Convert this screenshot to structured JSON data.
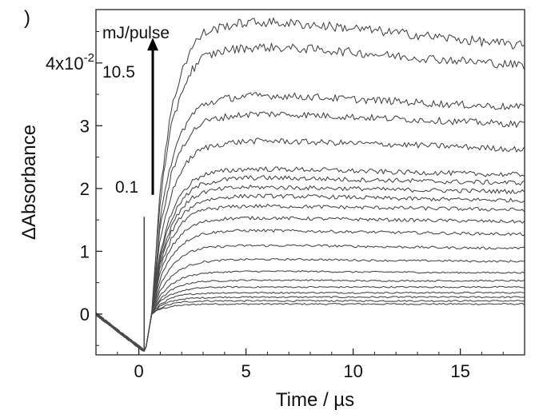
{
  "chart_data": {
    "type": "line",
    "panel_label": ")",
    "xlabel": "Time / µs",
    "ylabel": "ΔAbsorbance",
    "xlim": [
      -2,
      18
    ],
    "ylim": [
      -0.0065,
      0.0485
    ],
    "grid": false,
    "legend": "none",
    "x_ticks": [
      {
        "value": 0,
        "label": "0"
      },
      {
        "value": 5,
        "label": "5"
      },
      {
        "value": 10,
        "label": "10"
      },
      {
        "value": 15,
        "label": "15"
      }
    ],
    "y_ticks": [
      {
        "value": 0.0,
        "label": "0"
      },
      {
        "value": 0.01,
        "label": "1"
      },
      {
        "value": 0.02,
        "label": "2"
      },
      {
        "value": 0.03,
        "label": "3"
      },
      {
        "value": 0.04,
        "label": "4x10",
        "exponent": "-2"
      }
    ],
    "annotations": {
      "unit": "mJ/pulse",
      "high_energy": "10.5",
      "low_energy": "0.1",
      "arrow_from_y": 0.019,
      "arrow_to_y": 0.0435,
      "arrow_x": 0.65
    },
    "line_color": "#4a4a4a",
    "laser_spike": {
      "x": 0.25,
      "y_max": 0.0155,
      "y_min": -0.006
    },
    "series_note_x": [
      -2,
      0.3,
      0.6,
      1,
      1.5,
      2,
      2.5,
      3,
      4,
      5,
      6,
      8,
      10,
      12,
      14,
      16,
      18
    ],
    "series": [
      {
        "values": [
          0,
          -0.006,
          0,
          0.0008,
          0.0012,
          0.0014,
          0.0015,
          0.0016,
          0.0016,
          0.0016,
          0.0016,
          0.0016,
          0.0016,
          0.0016,
          0.0016,
          0.0016,
          0.0016
        ]
      },
      {
        "values": [
          0,
          -0.006,
          0,
          0.001,
          0.0016,
          0.0019,
          0.002,
          0.0021,
          0.0021,
          0.0021,
          0.0021,
          0.0021,
          0.0021,
          0.0021,
          0.0021,
          0.0021,
          0.0021
        ]
      },
      {
        "values": [
          0,
          -0.006,
          0,
          0.0013,
          0.002,
          0.0024,
          0.0025,
          0.0026,
          0.0027,
          0.0027,
          0.0027,
          0.0027,
          0.0027,
          0.0027,
          0.0027,
          0.0027,
          0.0027
        ]
      },
      {
        "values": [
          0,
          -0.006,
          0,
          0.0016,
          0.0025,
          0.003,
          0.0032,
          0.0033,
          0.0034,
          0.0034,
          0.0034,
          0.0034,
          0.0034,
          0.0034,
          0.0034,
          0.0034,
          0.0034
        ]
      },
      {
        "values": [
          0,
          -0.006,
          0,
          0.002,
          0.0031,
          0.0037,
          0.004,
          0.0042,
          0.0043,
          0.0043,
          0.0043,
          0.0043,
          0.0043,
          0.0043,
          0.0043,
          0.0043,
          0.0043
        ]
      },
      {
        "values": [
          0,
          -0.006,
          0,
          0.0024,
          0.0038,
          0.0046,
          0.005,
          0.0052,
          0.0053,
          0.0054,
          0.0054,
          0.0054,
          0.0053,
          0.0053,
          0.0053,
          0.0053,
          0.0053
        ]
      },
      {
        "values": [
          0,
          -0.006,
          0,
          0.003,
          0.0047,
          0.0057,
          0.0062,
          0.0065,
          0.0067,
          0.0068,
          0.0068,
          0.0068,
          0.0067,
          0.0067,
          0.0066,
          0.0066,
          0.0066
        ]
      },
      {
        "values": [
          0,
          -0.006,
          0,
          0.0038,
          0.006,
          0.0072,
          0.0079,
          0.0083,
          0.0086,
          0.0087,
          0.0087,
          0.0087,
          0.0086,
          0.0085,
          0.0085,
          0.0084,
          0.0084
        ]
      },
      {
        "values": [
          0,
          -0.006,
          0,
          0.0048,
          0.0076,
          0.0092,
          0.01,
          0.0105,
          0.0108,
          0.0109,
          0.0109,
          0.0109,
          0.0108,
          0.0107,
          0.0106,
          0.0105,
          0.0105
        ]
      },
      {
        "values": [
          0,
          -0.006,
          0,
          0.0058,
          0.0092,
          0.0111,
          0.0122,
          0.0128,
          0.0132,
          0.0133,
          0.0133,
          0.0132,
          0.0131,
          0.013,
          0.0129,
          0.0128,
          0.0127
        ]
      },
      {
        "values": [
          0,
          -0.006,
          0,
          0.0067,
          0.0106,
          0.0128,
          0.014,
          0.0147,
          0.0152,
          0.0153,
          0.0153,
          0.0152,
          0.0151,
          0.015,
          0.0149,
          0.0148,
          0.0147
        ]
      },
      {
        "values": [
          0,
          -0.006,
          0,
          0.0075,
          0.0119,
          0.0144,
          0.0158,
          0.0166,
          0.017,
          0.0172,
          0.0172,
          0.0171,
          0.017,
          0.0169,
          0.0168,
          0.0167,
          0.0166
        ]
      },
      {
        "values": [
          0,
          -0.006,
          0,
          0.0082,
          0.013,
          0.0157,
          0.0172,
          0.0181,
          0.0186,
          0.0188,
          0.0188,
          0.0187,
          0.0186,
          0.0184,
          0.0183,
          0.0182,
          0.0181
        ]
      },
      {
        "values": [
          0,
          -0.006,
          0,
          0.0088,
          0.014,
          0.0169,
          0.0185,
          0.0194,
          0.02,
          0.0202,
          0.0202,
          0.0201,
          0.02,
          0.0198,
          0.0197,
          0.0196,
          0.0195
        ]
      },
      {
        "values": [
          0,
          -0.006,
          0,
          0.0095,
          0.015,
          0.0181,
          0.0198,
          0.0208,
          0.0214,
          0.0217,
          0.0217,
          0.0216,
          0.0214,
          0.0213,
          0.0211,
          0.021,
          0.0209
        ]
      },
      {
        "values": [
          0,
          -0.006,
          0,
          0.0101,
          0.016,
          0.0193,
          0.0211,
          0.0222,
          0.0228,
          0.0231,
          0.0231,
          0.023,
          0.0228,
          0.0226,
          0.0225,
          0.0223,
          0.0222
        ]
      },
      {
        "values": [
          0,
          -0.006,
          0,
          0.012,
          0.019,
          0.023,
          0.0252,
          0.0264,
          0.0272,
          0.0275,
          0.0276,
          0.0274,
          0.0272,
          0.027,
          0.0268,
          0.0265,
          0.0262
        ]
      },
      {
        "values": [
          0,
          -0.006,
          0,
          0.0139,
          0.022,
          0.0266,
          0.0291,
          0.0306,
          0.0314,
          0.0318,
          0.0319,
          0.0317,
          0.0314,
          0.0311,
          0.0308,
          0.0305,
          0.0302
        ]
      },
      {
        "values": [
          0,
          -0.006,
          0,
          0.0152,
          0.0241,
          0.0291,
          0.0318,
          0.0334,
          0.0343,
          0.0347,
          0.0348,
          0.0346,
          0.0342,
          0.0339,
          0.0335,
          0.0332,
          0.0329
        ]
      },
      {
        "values": [
          0,
          -0.006,
          0,
          0.0186,
          0.0295,
          0.0356,
          0.039,
          0.0409,
          0.042,
          0.0424,
          0.0425,
          0.0422,
          0.0417,
          0.0411,
          0.0406,
          0.0401,
          0.0396
        ]
      },
      {
        "values": [
          0,
          -0.006,
          0,
          0.0203,
          0.0322,
          0.0389,
          0.0426,
          0.0447,
          0.0459,
          0.0464,
          0.0465,
          0.0461,
          0.0455,
          0.0448,
          0.0441,
          0.0434,
          0.0427
        ]
      }
    ]
  }
}
